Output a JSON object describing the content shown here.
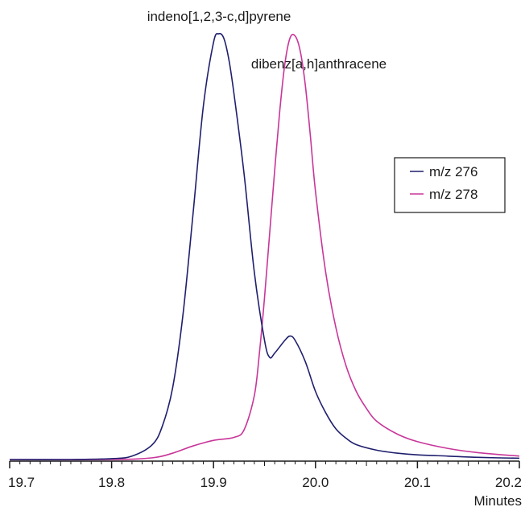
{
  "chart_data": {
    "type": "line",
    "xlabel": "Minutes",
    "ylabel": "",
    "xlim": [
      19.7,
      20.2
    ],
    "ylim": [
      0,
      1
    ],
    "grid": false,
    "legend_position": "right",
    "x_ticks": [
      {
        "value": 19.7,
        "label": "19.7"
      },
      {
        "value": 19.8,
        "label": "19.8"
      },
      {
        "value": 19.9,
        "label": "19.9"
      },
      {
        "value": 20.0,
        "label": "20.0"
      },
      {
        "value": 20.1,
        "label": "20.1"
      },
      {
        "value": 20.2,
        "label": "20.2"
      }
    ],
    "series": [
      {
        "name": "m/z 276",
        "color": "#1f1f6e",
        "x": [
          19.7,
          19.76,
          19.8,
          19.82,
          19.84,
          19.85,
          19.86,
          19.87,
          19.88,
          19.89,
          19.9,
          19.905,
          19.91,
          19.915,
          19.92,
          19.93,
          19.94,
          19.95,
          19.955,
          19.96,
          19.97,
          19.975,
          19.98,
          19.99,
          20.0,
          20.01,
          20.02,
          20.03,
          20.04,
          20.06,
          20.08,
          20.1,
          20.13,
          20.16,
          20.2
        ],
        "values": [
          0.0,
          0.0,
          0.002,
          0.008,
          0.035,
          0.08,
          0.17,
          0.34,
          0.58,
          0.83,
          0.98,
          1.0,
          0.99,
          0.94,
          0.86,
          0.67,
          0.44,
          0.28,
          0.24,
          0.25,
          0.28,
          0.29,
          0.28,
          0.23,
          0.16,
          0.11,
          0.072,
          0.05,
          0.035,
          0.022,
          0.015,
          0.011,
          0.008,
          0.005,
          0.003
        ]
      },
      {
        "name": "m/z 278",
        "color": "#c8369a",
        "x": [
          19.7,
          19.8,
          19.84,
          19.86,
          19.88,
          19.9,
          19.92,
          19.93,
          19.94,
          19.945,
          19.95,
          19.955,
          19.96,
          19.965,
          19.97,
          19.975,
          19.98,
          19.985,
          19.99,
          19.995,
          20.0,
          20.01,
          20.02,
          20.03,
          20.04,
          20.05,
          20.06,
          20.08,
          20.1,
          20.13,
          20.16,
          20.2
        ],
        "values": [
          0.0,
          0.0,
          0.004,
          0.015,
          0.032,
          0.045,
          0.052,
          0.07,
          0.15,
          0.25,
          0.38,
          0.53,
          0.68,
          0.82,
          0.93,
          0.99,
          0.995,
          0.96,
          0.88,
          0.76,
          0.63,
          0.44,
          0.31,
          0.22,
          0.16,
          0.12,
          0.09,
          0.06,
          0.042,
          0.026,
          0.016,
          0.008
        ]
      }
    ],
    "annotations": [
      {
        "text": "indeno[1,2,3-c,d]pyrene",
        "x": 19.905,
        "y": 1.0
      },
      {
        "text": "dibenz[a,h]anthracene",
        "x": 19.978,
        "y": 0.995
      }
    ]
  }
}
